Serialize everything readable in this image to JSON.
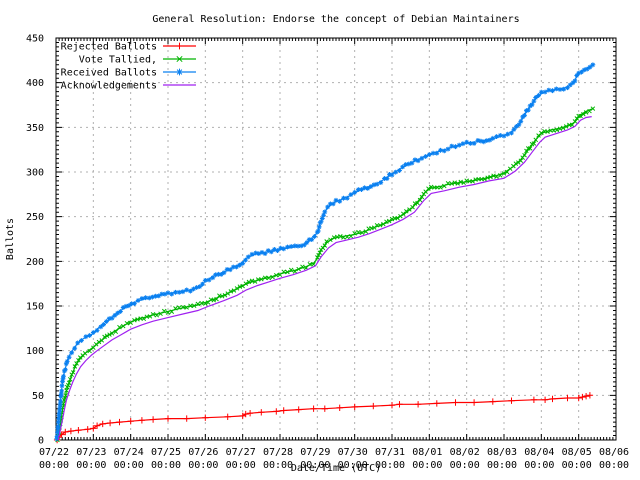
{
  "chart_data": {
    "type": "line",
    "title": "General Resolution: Endorse the concept of Debian Maintainers",
    "xlabel": "Date/Time (UTC)",
    "ylabel": "Ballots",
    "ylim": [
      0,
      450
    ],
    "y_major_step": 50,
    "y_minor_step": 5,
    "x_range_days": 15,
    "x_minor_hours": 2,
    "grid": true,
    "legend_position": "top-left-inside",
    "background_color": "#ffffff",
    "grid_color": "#b0b0b0",
    "border_color": "#000000",
    "x_ticks": [
      {
        "date": "07/22",
        "time": "00:00"
      },
      {
        "date": "07/23",
        "time": "00:00"
      },
      {
        "date": "07/24",
        "time": "00:00"
      },
      {
        "date": "07/25",
        "time": "00:00"
      },
      {
        "date": "07/26",
        "time": "00:00"
      },
      {
        "date": "07/27",
        "time": "00:00"
      },
      {
        "date": "07/28",
        "time": "00:00"
      },
      {
        "date": "07/29",
        "time": "00:00"
      },
      {
        "date": "07/30",
        "time": "00:00"
      },
      {
        "date": "07/31",
        "time": "00:00"
      },
      {
        "date": "08/01",
        "time": "00:00"
      },
      {
        "date": "08/02",
        "time": "00:00"
      },
      {
        "date": "08/03",
        "time": "00:00"
      },
      {
        "date": "08/04",
        "time": "00:00"
      },
      {
        "date": "08/05",
        "time": "00:00"
      },
      {
        "date": "08/06",
        "time": "00:00"
      }
    ],
    "y_ticks": [
      0,
      50,
      100,
      150,
      200,
      250,
      300,
      350,
      400,
      450
    ],
    "series": [
      {
        "name": "Rejected Ballots",
        "color": "#ff0000",
        "marker": "plus",
        "dense_markers": false,
        "points": [
          [
            0.03,
            0
          ],
          [
            0.08,
            3
          ],
          [
            0.15,
            6
          ],
          [
            0.25,
            9
          ],
          [
            0.4,
            10
          ],
          [
            0.6,
            11
          ],
          [
            0.85,
            12
          ],
          [
            1.0,
            13
          ],
          [
            1.1,
            16
          ],
          [
            1.25,
            18
          ],
          [
            1.45,
            19
          ],
          [
            1.7,
            20
          ],
          [
            2.0,
            21
          ],
          [
            2.3,
            22
          ],
          [
            2.6,
            23
          ],
          [
            3.0,
            24
          ],
          [
            3.5,
            24
          ],
          [
            4.0,
            25
          ],
          [
            4.6,
            26
          ],
          [
            5.0,
            27
          ],
          [
            5.08,
            29
          ],
          [
            5.2,
            30
          ],
          [
            5.5,
            31
          ],
          [
            5.9,
            32
          ],
          [
            6.1,
            33
          ],
          [
            6.5,
            34
          ],
          [
            6.9,
            35
          ],
          [
            7.2,
            35
          ],
          [
            7.6,
            36
          ],
          [
            8.0,
            37
          ],
          [
            8.5,
            38
          ],
          [
            9.0,
            39
          ],
          [
            9.2,
            40
          ],
          [
            9.7,
            40
          ],
          [
            10.2,
            41
          ],
          [
            10.7,
            42
          ],
          [
            11.2,
            42
          ],
          [
            11.7,
            43
          ],
          [
            12.2,
            44
          ],
          [
            12.8,
            45
          ],
          [
            13.1,
            45
          ],
          [
            13.3,
            46
          ],
          [
            13.7,
            47
          ],
          [
            14.0,
            47
          ],
          [
            14.1,
            48
          ],
          [
            14.2,
            49
          ],
          [
            14.3,
            50
          ]
        ]
      },
      {
        "name": "Vote Tallied,",
        "color": "#00b400",
        "marker": "cross",
        "dense_markers": true,
        "points": [
          [
            0.04,
            0
          ],
          [
            0.08,
            10
          ],
          [
            0.13,
            22
          ],
          [
            0.18,
            35
          ],
          [
            0.24,
            48
          ],
          [
            0.3,
            58
          ],
          [
            0.38,
            68
          ],
          [
            0.46,
            77
          ],
          [
            0.55,
            85
          ],
          [
            0.65,
            91
          ],
          [
            0.78,
            97
          ],
          [
            0.9,
            101
          ],
          [
            1.0,
            104
          ],
          [
            1.15,
            109
          ],
          [
            1.3,
            114
          ],
          [
            1.5,
            120
          ],
          [
            1.7,
            125
          ],
          [
            1.9,
            130
          ],
          [
            2.1,
            134
          ],
          [
            2.35,
            137
          ],
          [
            2.6,
            140
          ],
          [
            2.9,
            143
          ],
          [
            3.2,
            146
          ],
          [
            3.5,
            149
          ],
          [
            3.8,
            151
          ],
          [
            4.0,
            154
          ],
          [
            4.3,
            159
          ],
          [
            4.6,
            164
          ],
          [
            4.85,
            169
          ],
          [
            5.0,
            173
          ],
          [
            5.25,
            177
          ],
          [
            5.5,
            180
          ],
          [
            5.8,
            183
          ],
          [
            6.1,
            187
          ],
          [
            6.4,
            190
          ],
          [
            6.7,
            194
          ],
          [
            6.9,
            198
          ],
          [
            7.0,
            203
          ],
          [
            7.1,
            213
          ],
          [
            7.25,
            221
          ],
          [
            7.45,
            226
          ],
          [
            7.7,
            228
          ],
          [
            8.0,
            230
          ],
          [
            8.3,
            234
          ],
          [
            8.6,
            239
          ],
          [
            8.85,
            243
          ],
          [
            9.0,
            246
          ],
          [
            9.3,
            252
          ],
          [
            9.55,
            260
          ],
          [
            9.75,
            270
          ],
          [
            9.9,
            278
          ],
          [
            10.05,
            282
          ],
          [
            10.3,
            284
          ],
          [
            10.6,
            287
          ],
          [
            11.0,
            289
          ],
          [
            11.4,
            292
          ],
          [
            11.8,
            296
          ],
          [
            12.0,
            299
          ],
          [
            12.25,
            306
          ],
          [
            12.45,
            314
          ],
          [
            12.65,
            325
          ],
          [
            12.85,
            336
          ],
          [
            13.0,
            343
          ],
          [
            13.25,
            347
          ],
          [
            13.5,
            349
          ],
          [
            13.75,
            352
          ],
          [
            13.9,
            356
          ],
          [
            14.05,
            364
          ],
          [
            14.2,
            368
          ],
          [
            14.38,
            371
          ]
        ]
      },
      {
        "name": "Received Ballots",
        "color": "#0a80f0",
        "marker": "asterisk",
        "dense_markers": true,
        "points": [
          [
            0.02,
            0
          ],
          [
            0.05,
            12
          ],
          [
            0.08,
            28
          ],
          [
            0.12,
            45
          ],
          [
            0.16,
            60
          ],
          [
            0.2,
            72
          ],
          [
            0.25,
            80
          ],
          [
            0.3,
            88
          ],
          [
            0.35,
            94
          ],
          [
            0.42,
            99
          ],
          [
            0.5,
            104
          ],
          [
            0.58,
            108
          ],
          [
            0.68,
            112
          ],
          [
            0.8,
            115
          ],
          [
            0.9,
            117
          ],
          [
            1.0,
            119
          ],
          [
            1.1,
            124
          ],
          [
            1.2,
            128
          ],
          [
            1.35,
            132
          ],
          [
            1.5,
            137
          ],
          [
            1.65,
            142
          ],
          [
            1.8,
            147
          ],
          [
            1.95,
            151
          ],
          [
            2.1,
            154
          ],
          [
            2.3,
            157
          ],
          [
            2.5,
            159
          ],
          [
            2.75,
            162
          ],
          [
            3.0,
            164
          ],
          [
            3.3,
            166
          ],
          [
            3.6,
            168
          ],
          [
            3.85,
            171
          ],
          [
            4.0,
            178
          ],
          [
            4.2,
            183
          ],
          [
            4.5,
            188
          ],
          [
            4.75,
            193
          ],
          [
            5.0,
            199
          ],
          [
            5.15,
            205
          ],
          [
            5.35,
            208
          ],
          [
            5.6,
            210
          ],
          [
            5.85,
            212
          ],
          [
            6.1,
            214
          ],
          [
            6.4,
            216
          ],
          [
            6.65,
            219
          ],
          [
            6.85,
            225
          ],
          [
            7.0,
            232
          ],
          [
            7.1,
            245
          ],
          [
            7.2,
            256
          ],
          [
            7.35,
            263
          ],
          [
            7.5,
            267
          ],
          [
            7.7,
            270
          ],
          [
            7.9,
            274
          ],
          [
            8.1,
            279
          ],
          [
            8.35,
            283
          ],
          [
            8.6,
            287
          ],
          [
            8.8,
            292
          ],
          [
            9.0,
            298
          ],
          [
            9.2,
            303
          ],
          [
            9.45,
            309
          ],
          [
            9.7,
            314
          ],
          [
            9.9,
            318
          ],
          [
            10.1,
            321
          ],
          [
            10.4,
            325
          ],
          [
            10.7,
            329
          ],
          [
            11.0,
            332
          ],
          [
            11.3,
            334
          ],
          [
            11.7,
            337
          ],
          [
            12.0,
            341
          ],
          [
            12.2,
            345
          ],
          [
            12.4,
            353
          ],
          [
            12.55,
            364
          ],
          [
            12.7,
            374
          ],
          [
            12.85,
            382
          ],
          [
            13.0,
            388
          ],
          [
            13.2,
            391
          ],
          [
            13.5,
            393
          ],
          [
            13.7,
            395
          ],
          [
            13.85,
            400
          ],
          [
            14.0,
            410
          ],
          [
            14.15,
            415
          ],
          [
            14.3,
            418
          ],
          [
            14.38,
            420
          ]
        ]
      },
      {
        "name": "Acknowledgements",
        "color": "#a020f0",
        "marker": "none",
        "dense_markers": false,
        "points": [
          [
            0.06,
            0
          ],
          [
            0.1,
            8
          ],
          [
            0.16,
            20
          ],
          [
            0.22,
            33
          ],
          [
            0.28,
            45
          ],
          [
            0.36,
            55
          ],
          [
            0.45,
            65
          ],
          [
            0.55,
            74
          ],
          [
            0.66,
            82
          ],
          [
            0.8,
            89
          ],
          [
            0.95,
            95
          ],
          [
            1.1,
            100
          ],
          [
            1.3,
            106
          ],
          [
            1.5,
            112
          ],
          [
            1.75,
            118
          ],
          [
            2.0,
            124
          ],
          [
            2.3,
            129
          ],
          [
            2.6,
            133
          ],
          [
            3.0,
            137
          ],
          [
            3.4,
            141
          ],
          [
            3.8,
            145
          ],
          [
            4.1,
            150
          ],
          [
            4.5,
            156
          ],
          [
            4.85,
            162
          ],
          [
            5.1,
            168
          ],
          [
            5.4,
            173
          ],
          [
            5.7,
            177
          ],
          [
            6.0,
            181
          ],
          [
            6.35,
            185
          ],
          [
            6.7,
            190
          ],
          [
            6.95,
            195
          ],
          [
            7.1,
            205
          ],
          [
            7.3,
            215
          ],
          [
            7.5,
            221
          ],
          [
            7.8,
            224
          ],
          [
            8.1,
            227
          ],
          [
            8.4,
            231
          ],
          [
            8.7,
            236
          ],
          [
            9.0,
            241
          ],
          [
            9.3,
            247
          ],
          [
            9.6,
            255
          ],
          [
            9.85,
            268
          ],
          [
            10.05,
            276
          ],
          [
            10.4,
            279
          ],
          [
            10.8,
            283
          ],
          [
            11.2,
            286
          ],
          [
            11.6,
            290
          ],
          [
            12.0,
            293
          ],
          [
            12.3,
            301
          ],
          [
            12.55,
            311
          ],
          [
            12.75,
            322
          ],
          [
            12.95,
            333
          ],
          [
            13.1,
            339
          ],
          [
            13.4,
            343
          ],
          [
            13.7,
            347
          ],
          [
            13.9,
            351
          ],
          [
            14.05,
            358
          ],
          [
            14.2,
            361
          ],
          [
            14.35,
            362
          ]
        ]
      }
    ]
  }
}
